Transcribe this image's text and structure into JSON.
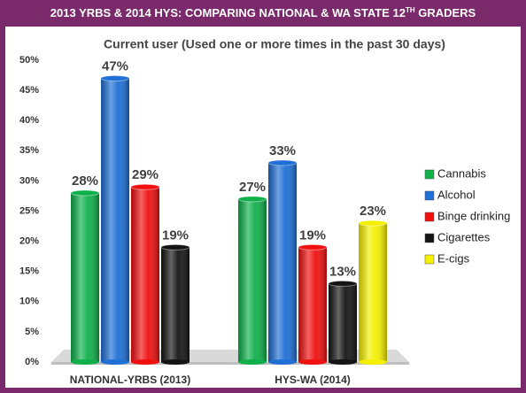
{
  "chart_data": {
    "type": "bar",
    "title": {
      "main": "2013 YRBS & 2014 HYS: COMPARING NATIONAL & WA STATE 12",
      "sup": "TH",
      "end": " GRADERS"
    },
    "subtitle": "Current user (Used one or more times in the past 30 days)",
    "categories": [
      "NATIONAL-YRBS (2013)",
      "HYS-WA (2014)"
    ],
    "series": [
      {
        "name": "Cannabis",
        "color": "#0fb04a",
        "values": [
          28,
          27
        ],
        "value_labels": [
          "28%",
          "27%"
        ]
      },
      {
        "name": "Alcohol",
        "color": "#1f6fd6",
        "values": [
          47,
          33
        ],
        "value_labels": [
          "47%",
          "33%"
        ]
      },
      {
        "name": "Binge drinking",
        "color": "#f01010",
        "values": [
          29,
          19
        ],
        "value_labels": [
          "29%",
          "19%"
        ]
      },
      {
        "name": "Cigarettes",
        "color": "#141414",
        "values": [
          19,
          13
        ],
        "value_labels": [
          "19%",
          "13%"
        ]
      },
      {
        "name": "E-cigs",
        "color": "#f4f000",
        "values": [
          null,
          23
        ],
        "value_labels": [
          null,
          "23%"
        ]
      }
    ],
    "ylim": [
      0,
      50
    ],
    "yticks": [
      {
        "value": 0,
        "label": "0%"
      },
      {
        "value": 5,
        "label": "5%"
      },
      {
        "value": 10,
        "label": "10%"
      },
      {
        "value": 15,
        "label": "15%"
      },
      {
        "value": 20,
        "label": "20%"
      },
      {
        "value": 25,
        "label": "25%"
      },
      {
        "value": 30,
        "label": "30%"
      },
      {
        "value": 35,
        "label": "35%"
      },
      {
        "value": 40,
        "label": "40%"
      },
      {
        "value": 45,
        "label": "45%"
      },
      {
        "value": 50,
        "label": "50%"
      }
    ],
    "legend": "right"
  }
}
